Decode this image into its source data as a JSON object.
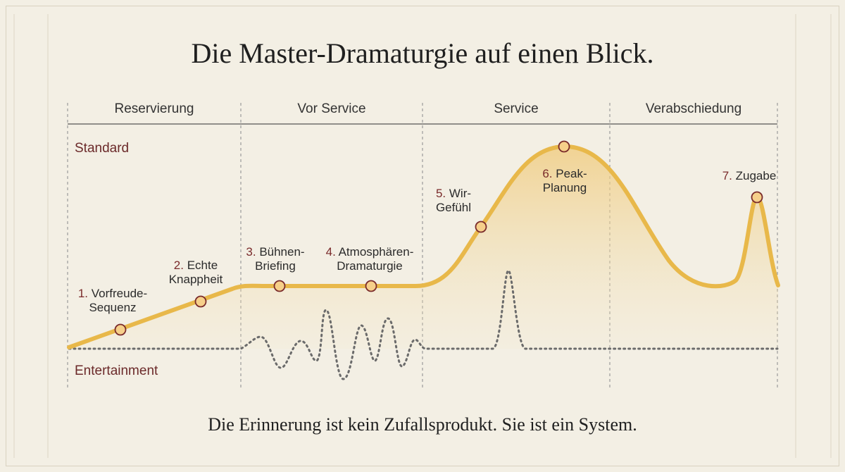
{
  "title": "Die Master-Dramaturgie auf einen Blick.",
  "footer": "Die Erinnerung ist kein Zufallsprodukt. Sie ist ein System.",
  "phases": [
    "Reservierung",
    "Vor Service",
    "Service",
    "Verabschiedung"
  ],
  "levels": {
    "top": "Standard",
    "bottom": "Entertainment"
  },
  "milestones": [
    {
      "num": "1.",
      "line1": "Vorfreude-",
      "line2": "Sequenz"
    },
    {
      "num": "2.",
      "line1": "Echte",
      "line2": "Knappheit"
    },
    {
      "num": "3.",
      "line1": "Bühnen-",
      "line2": "Briefing"
    },
    {
      "num": "4.",
      "line1": "Atmosphären-",
      "line2": "Dramaturgie"
    },
    {
      "num": "5.",
      "line1": "Wir-",
      "line2": "Gefühl"
    },
    {
      "num": "6.",
      "line1": "Peak-",
      "line2": "Planung"
    },
    {
      "num": "7.",
      "line1": "Zugabe",
      "line2": ""
    }
  ],
  "colors": {
    "curve": "#e8b84a",
    "fill": "#f3d9a0",
    "marker_fill": "#f6cf8a",
    "marker_stroke": "#7a2b2b",
    "dotted": "#6b6b6b",
    "divider": "#9a9a9a"
  }
}
